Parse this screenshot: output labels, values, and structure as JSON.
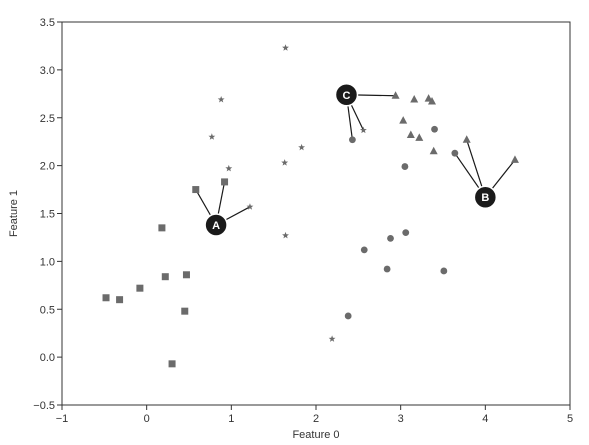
{
  "chart_data": {
    "type": "scatter",
    "xlabel": "Feature 0",
    "ylabel": "Feature 1",
    "xlim": [
      -1,
      5
    ],
    "ylim": [
      -0.5,
      3.5
    ],
    "xticks": [
      "−1",
      "0",
      "1",
      "2",
      "3",
      "4",
      "5"
    ],
    "yticks": [
      "−0.5",
      "0.0",
      "0.5",
      "1.0",
      "1.5",
      "2.0",
      "2.5",
      "3.0",
      "3.5"
    ],
    "grid": false,
    "marker_color": "#6b6b6b",
    "callout_color": "#1a1a1a",
    "series": [
      {
        "marker": "square",
        "points": [
          [
            -0.48,
            0.62
          ],
          [
            -0.32,
            0.6
          ],
          [
            -0.08,
            0.72
          ],
          [
            0.18,
            1.35
          ],
          [
            0.22,
            0.84
          ],
          [
            0.3,
            -0.07
          ],
          [
            0.45,
            0.48
          ],
          [
            0.47,
            0.86
          ],
          [
            0.58,
            1.75
          ],
          [
            0.92,
            1.83
          ]
        ]
      },
      {
        "marker": "star",
        "points": [
          [
            0.77,
            2.3
          ],
          [
            0.88,
            2.69
          ],
          [
            0.97,
            1.97
          ],
          [
            1.22,
            1.57
          ],
          [
            1.63,
            2.03
          ],
          [
            1.64,
            3.23
          ],
          [
            1.64,
            1.27
          ],
          [
            1.83,
            2.19
          ],
          [
            2.19,
            0.19
          ],
          [
            2.56,
            2.37
          ]
        ]
      },
      {
        "marker": "circle",
        "points": [
          [
            2.38,
            0.43
          ],
          [
            2.43,
            2.27
          ],
          [
            2.57,
            1.12
          ],
          [
            2.84,
            0.92
          ],
          [
            2.88,
            1.24
          ],
          [
            3.05,
            1.99
          ],
          [
            3.06,
            1.3
          ],
          [
            3.4,
            2.38
          ],
          [
            3.51,
            0.9
          ],
          [
            3.64,
            2.13
          ]
        ]
      },
      {
        "marker": "triangle",
        "points": [
          [
            2.94,
            2.73
          ],
          [
            3.03,
            2.47
          ],
          [
            3.12,
            2.32
          ],
          [
            3.16,
            2.69
          ],
          [
            3.22,
            2.29
          ],
          [
            3.33,
            2.7
          ],
          [
            3.37,
            2.67
          ],
          [
            3.39,
            2.15
          ],
          [
            3.78,
            2.27
          ],
          [
            4.35,
            2.06
          ]
        ]
      }
    ],
    "annotations": [
      {
        "label": "A",
        "at": [
          0.82,
          1.38
        ],
        "targets": [
          [
            0.58,
            1.75
          ],
          [
            0.92,
            1.83
          ],
          [
            1.22,
            1.57
          ]
        ]
      },
      {
        "label": "B",
        "at": [
          4.0,
          1.67
        ],
        "targets": [
          [
            3.64,
            2.13
          ],
          [
            3.78,
            2.27
          ],
          [
            4.35,
            2.06
          ]
        ]
      },
      {
        "label": "C",
        "at": [
          2.36,
          2.74
        ],
        "targets": [
          [
            2.43,
            2.27
          ],
          [
            2.56,
            2.37
          ],
          [
            2.94,
            2.73
          ]
        ]
      }
    ]
  }
}
